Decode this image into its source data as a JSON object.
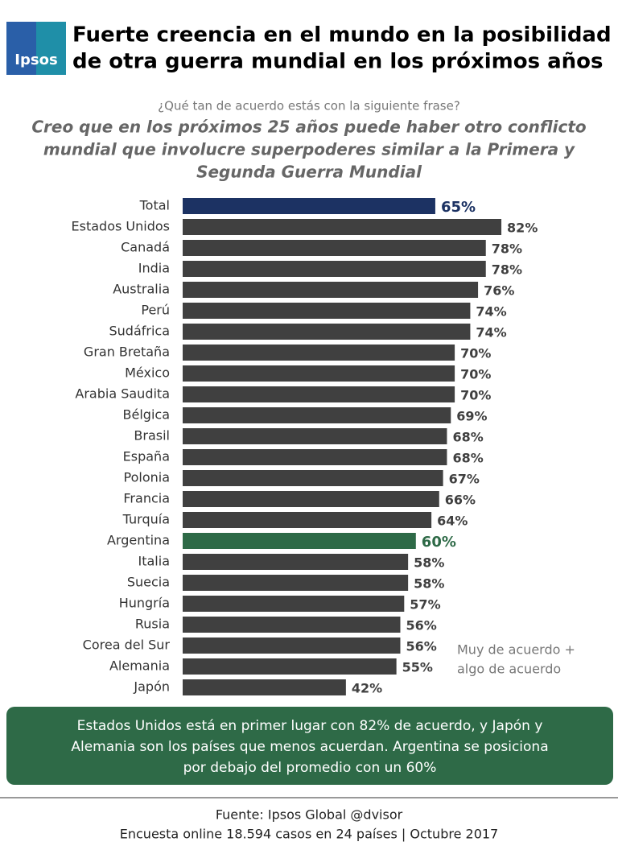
{
  "logo": "Ipsos",
  "title": [
    "Fuerte creencia en el mundo en la posibilidad",
    "de otra guerra mundial en los próximos años"
  ],
  "chart_data": {
    "type": "bar",
    "subtitle": "¿Qué tan de acuerdo estás con la siguiente frase?",
    "question": [
      "Creo que en los próximos 25 años puede haber otro conflicto",
      "mundial que involucre superpoderes similar a la Primera y",
      "Segunda Guerra Mundial"
    ],
    "categories": [
      "Total",
      "Estados Unidos",
      "Canadá",
      "India",
      "Australia",
      "Perú",
      "Sudáfrica",
      "Gran Bretaña",
      "México",
      "Arabia Saudita",
      "Bélgica",
      "Brasil",
      "España",
      "Polonia",
      "Francia",
      "Turquía",
      "Argentina",
      "Italia",
      "Suecia",
      "Hungría",
      "Rusia",
      "Corea del Sur",
      "Alemania",
      "Japón"
    ],
    "values": [
      65,
      82,
      78,
      78,
      76,
      74,
      74,
      70,
      70,
      70,
      69,
      68,
      68,
      67,
      66,
      64,
      60,
      58,
      58,
      57,
      56,
      56,
      55,
      42
    ],
    "value_labels": [
      "65%",
      "82%",
      "78%",
      "78%",
      "76%",
      "74%",
      "74%",
      "70%",
      "70%",
      "70%",
      "69%",
      "68%",
      "68%",
      "67%",
      "66%",
      "64%",
      "60%",
      "58%",
      "58%",
      "57%",
      "56%",
      "56%",
      "55%",
      "42%"
    ],
    "colors": [
      "#1c3263",
      "#404040",
      "#404040",
      "#404040",
      "#404040",
      "#404040",
      "#404040",
      "#404040",
      "#404040",
      "#404040",
      "#404040",
      "#404040",
      "#404040",
      "#404040",
      "#404040",
      "#404040",
      "#2e6a47",
      "#404040",
      "#404040",
      "#404040",
      "#404040",
      "#404040",
      "#404040",
      "#404040"
    ],
    "note": [
      "Muy de acuerdo +",
      "algo de acuerdo"
    ]
  },
  "summary": [
    "Estados Unidos está en primer lugar con 82% de acuerdo, y Japón y",
    "Alemania son los países que menos acuerdan. Argentina se posiciona",
    "por debajo del promedio con un 60%"
  ],
  "footer": [
    "Fuente: Ipsos Global @dvisor",
    "Encuesta online 18.594 casos en 24 países | Octubre 2017"
  ]
}
